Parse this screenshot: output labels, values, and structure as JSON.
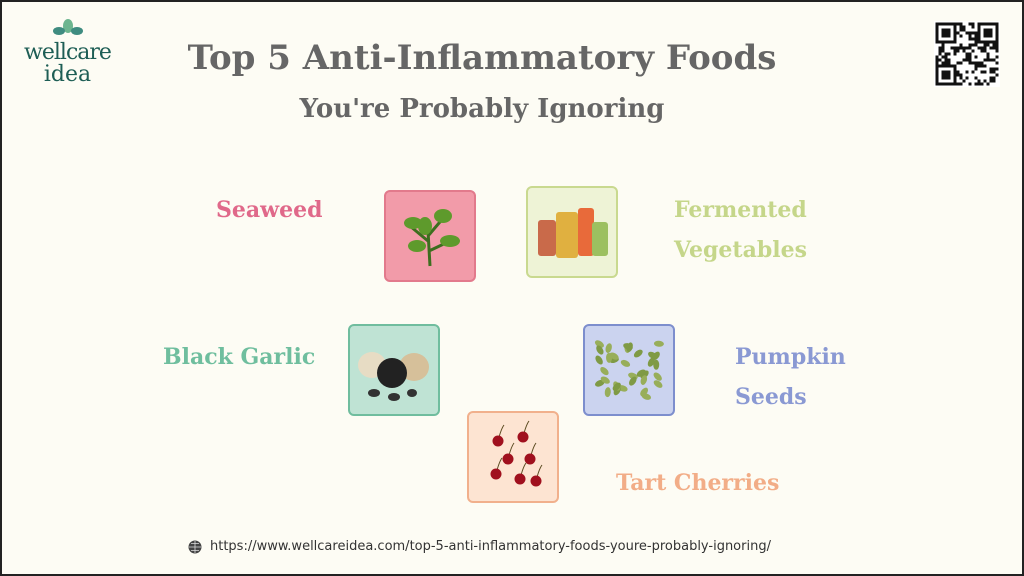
{
  "logo": {
    "line1": "wellcare",
    "line2": "idea"
  },
  "title": "Top 5 Anti-Inflammatory Foods",
  "subtitle": "You're Probably Ignoring",
  "foods": [
    {
      "label": "Seaweed",
      "color": "#e0698a",
      "tile_bg": "#f29ba9",
      "tile_border": "#e27a8c"
    },
    {
      "label_line1": "Fermented",
      "label_line2": "Vegetables",
      "color": "#c5d68a",
      "tile_bg": "#eef3d6",
      "tile_border": "#c9d98f"
    },
    {
      "label": "Black Garlic",
      "color": "#6fbe9e",
      "tile_bg": "#bfe3d4",
      "tile_border": "#70bd9e"
    },
    {
      "label_line1": "Pumpkin",
      "label_line2": "Seeds",
      "color": "#8a99d3",
      "tile_bg": "#cbd3ef",
      "tile_border": "#7d8ecd"
    },
    {
      "label": "Tart Cherries",
      "color": "#f2ad87",
      "tile_bg": "#fde4d2",
      "tile_border": "#f1b08c"
    }
  ],
  "url": "https://www.wellcareidea.com/top-5-anti-inflammatory-foods-youre-probably-ignoring/",
  "icons": {
    "url": "globe-icon",
    "qr": "qr-code"
  }
}
